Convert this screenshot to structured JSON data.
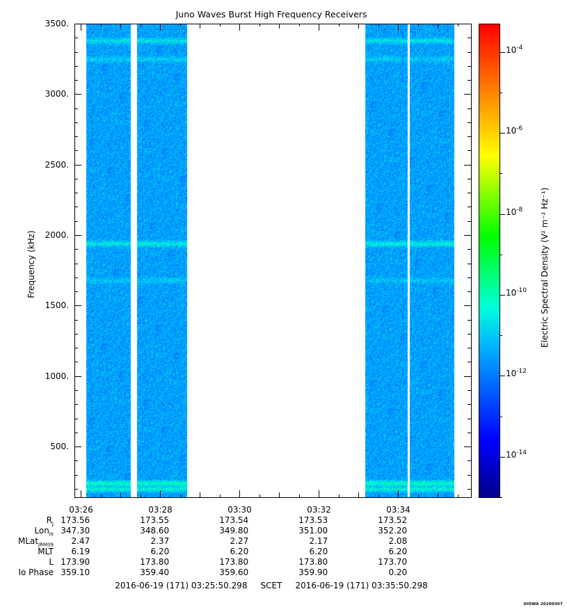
{
  "chart_data": {
    "type": "heatmap",
    "title": "Juno Waves Burst High Frequency Receivers",
    "ylabel": "Frequency (kHz)",
    "colorbar_label": "Electric Spectral Density (V² m⁻² Hz⁻¹)",
    "ylim": [
      140,
      3500
    ],
    "y_ticks": [
      500,
      1000,
      1500,
      2000,
      2500,
      3000,
      3500
    ],
    "y_tick_labels": [
      "500.",
      "1000.",
      "1500.",
      "2000.",
      "2500.",
      "3000.",
      "3500."
    ],
    "xlim": [
      "03:25:50.298",
      "03:35:50.298"
    ],
    "x_ticks": [
      "03:26",
      "03:28",
      "03:30",
      "03:32",
      "03:34"
    ],
    "colorbar_log_range": [
      -15,
      -3.3
    ],
    "colorbar_ticks": [
      {
        "exp": -4,
        "label": "10",
        "sup": "-4"
      },
      {
        "exp": -6,
        "label": "10",
        "sup": "-6"
      },
      {
        "exp": -8,
        "label": "10",
        "sup": "-8"
      },
      {
        "exp": -10,
        "label": "10",
        "sup": "-10"
      },
      {
        "exp": -12,
        "label": "10",
        "sup": "-12"
      },
      {
        "exp": -14,
        "label": "10",
        "sup": "-14"
      }
    ],
    "data_blocks": [
      {
        "start": "03:26:08",
        "end": "03:27:15"
      },
      {
        "start": "03:27:25",
        "end": "03:28:40"
      },
      {
        "start": "03:33:10",
        "end": "03:34:14"
      },
      {
        "start": "03:34:17",
        "end": "03:35:24"
      }
    ],
    "background_log_density": -11.5,
    "emission_bands": [
      {
        "freq_khz": 3380,
        "log_density": -10.6
      },
      {
        "freq_khz": 3250,
        "log_density": -10.9
      },
      {
        "freq_khz": 1940,
        "log_density": -10.4
      },
      {
        "freq_khz": 1680,
        "log_density": -11.0
      },
      {
        "freq_khz": 240,
        "log_density": -10.0
      },
      {
        "freq_khz": 200,
        "log_density": -10.3
      }
    ]
  },
  "ephemeris": {
    "rows": [
      {
        "label": "R",
        "sub": "J",
        "values": [
          "173.56",
          "173.55",
          "173.54",
          "173.53",
          "173.52"
        ]
      },
      {
        "label": "Lon",
        "sub": "III",
        "values": [
          "347.30",
          "348.60",
          "349.80",
          "351.00",
          "352.20"
        ]
      },
      {
        "label": "MLat",
        "sub": "JRM09",
        "values": [
          "2.47",
          "2.37",
          "2.27",
          "2.17",
          "2.08"
        ]
      },
      {
        "label": "MLT",
        "sub": "",
        "values": [
          "6.19",
          "6.20",
          "6.20",
          "6.20",
          "6.20"
        ]
      },
      {
        "label": "L",
        "sub": "",
        "values": [
          "173.90",
          "173.80",
          "173.80",
          "173.80",
          "173.70"
        ]
      },
      {
        "label": "Io Phase",
        "sub": "",
        "values": [
          "359.10",
          "359.40",
          "359.60",
          "359.90",
          "0.20"
        ]
      }
    ]
  },
  "footer": {
    "start": "2016-06-19 (171) 03:25:50.298",
    "frame": "SCET",
    "end": "2016-06-19 (171) 03:35:50.298"
  },
  "stamp": "UIOWA 20200307",
  "colors": {
    "background": "#ffffff",
    "axis": "#000000"
  }
}
